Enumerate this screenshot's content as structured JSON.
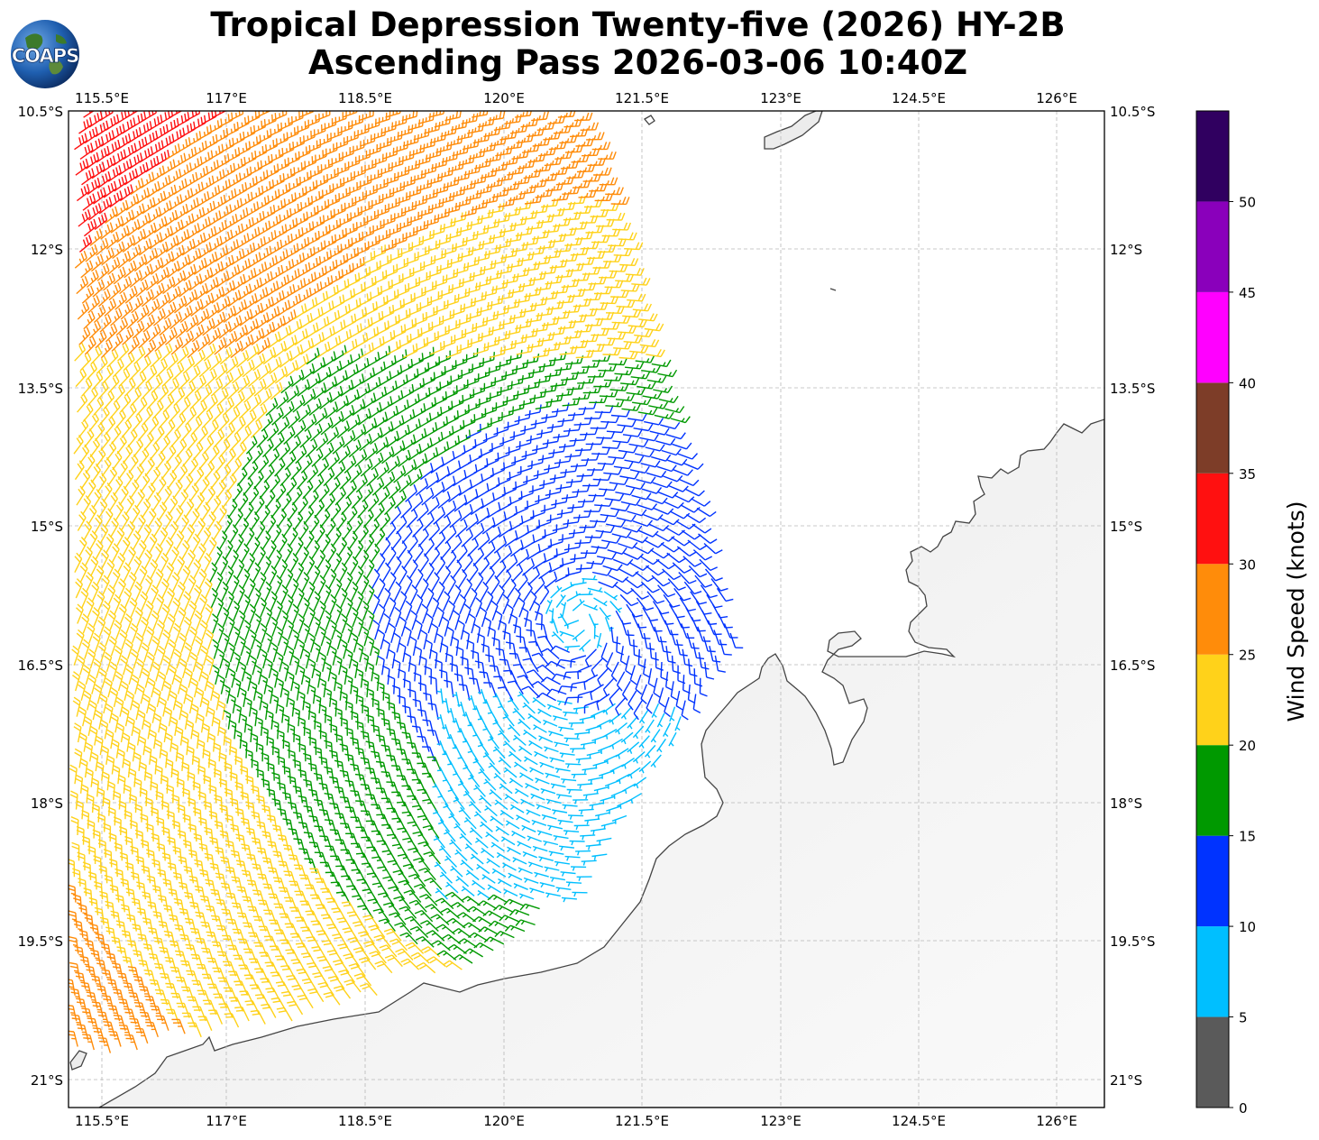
{
  "title": {
    "line1": "Tropical Depression Twenty-five (2026) HY-2B",
    "line2": "Ascending Pass 2026-03-06 10:40Z"
  },
  "logo": {
    "text": "COAPS",
    "icon": "globe-logo-icon"
  },
  "map": {
    "lon_ticks": [
      "115.5°E",
      "117°E",
      "118.5°E",
      "120°E",
      "121.5°E",
      "123°E",
      "124.5°E",
      "126°E"
    ],
    "lat_ticks": [
      "10.5°S",
      "12°S",
      "13.5°S",
      "15°S",
      "16.5°S",
      "18°S",
      "19.5°S",
      "21°S"
    ],
    "lon_range": [
      115.25,
      126.5
    ],
    "lat_range": [
      -10.5,
      -21.3
    ],
    "gridlines": true,
    "land_color": "#eeeeee",
    "coast_color": "#444444"
  },
  "colorbar": {
    "label": "Wind Speed (knots)",
    "tick_labels": [
      "0",
      "5",
      "10",
      "15",
      "20",
      "25",
      "30",
      "35",
      "40",
      "45",
      "50"
    ],
    "bins": [
      {
        "min": 0,
        "max": 5,
        "color": "#5a5a5a"
      },
      {
        "min": 5,
        "max": 10,
        "color": "#00bfff"
      },
      {
        "min": 10,
        "max": 15,
        "color": "#0033ff"
      },
      {
        "min": 15,
        "max": 20,
        "color": "#009900"
      },
      {
        "min": 20,
        "max": 25,
        "color": "#ffd21a"
      },
      {
        "min": 25,
        "max": 30,
        "color": "#ff8c0a"
      },
      {
        "min": 30,
        "max": 35,
        "color": "#ff1010"
      },
      {
        "min": 35,
        "max": 40,
        "color": "#7d3d28"
      },
      {
        "min": 40,
        "max": 45,
        "color": "#ff00ff"
      },
      {
        "min": 45,
        "max": 50,
        "color": "#8a00bb"
      },
      {
        "min": 50,
        "max": 55,
        "color": "#300060"
      }
    ]
  }
}
